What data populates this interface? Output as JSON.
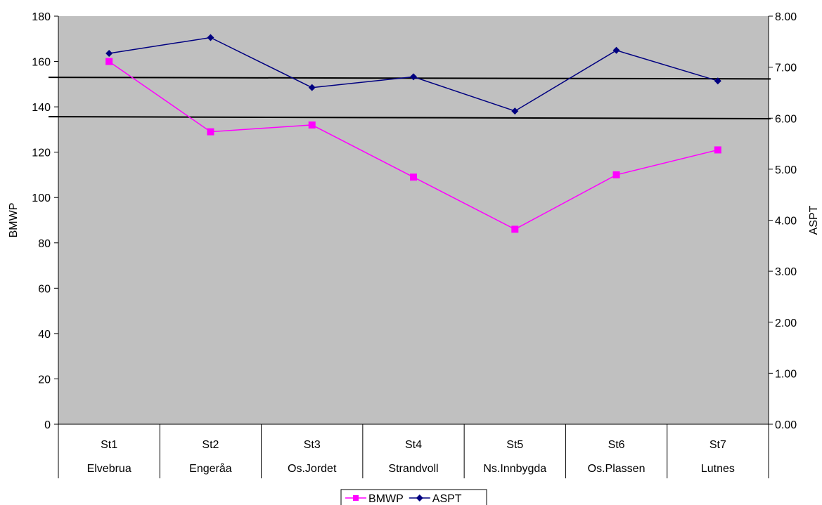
{
  "chart_data": {
    "type": "line",
    "title": "",
    "categories": [
      "St1",
      "St2",
      "St3",
      "St4",
      "St5",
      "St6",
      "St7"
    ],
    "category_sublabels": [
      "Elvebrua",
      "Engeråa",
      "Os.Jordet",
      "Strandvoll",
      "Ns.Innbygda",
      "Os.Plassen",
      "Lutnes"
    ],
    "ylabel_left": "BMWP",
    "ylabel_right": "ASPT",
    "ylim_left": [
      0,
      180
    ],
    "ylim_right": [
      0,
      8
    ],
    "yticks_left": [
      "0",
      "20",
      "40",
      "60",
      "80",
      "100",
      "120",
      "140",
      "160",
      "180"
    ],
    "yticks_right": [
      "0.00",
      "1.00",
      "2.00",
      "3.00",
      "4.00",
      "5.00",
      "6.00",
      "7.00",
      "8.00"
    ],
    "series": [
      {
        "name": "BMWP",
        "axis": "left",
        "color": "#ff00ff",
        "marker": "square",
        "values": [
          160,
          129,
          132,
          109,
          86,
          110,
          121
        ]
      },
      {
        "name": "ASPT",
        "axis": "right",
        "color": "#000080",
        "marker": "diamond",
        "values": [
          7.27,
          7.58,
          6.6,
          6.81,
          6.14,
          7.33,
          6.73
        ]
      }
    ],
    "reference_lines": [
      {
        "axis": "right",
        "from": 6.8,
        "to": 6.77,
        "color": "#000000"
      },
      {
        "axis": "right",
        "from": 6.03,
        "to": 5.99,
        "color": "#000000"
      }
    ],
    "plot_background": "#c0c0c0",
    "grid": false,
    "legend_position": "bottom-center"
  }
}
